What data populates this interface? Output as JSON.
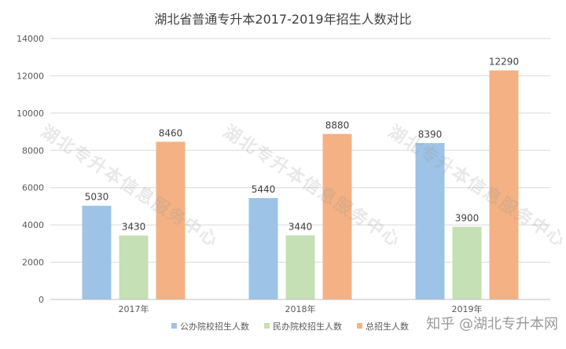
{
  "chart_data": {
    "type": "bar",
    "title": "湖北省普通专升本2017-2019年招生人数对比",
    "xlabel": "",
    "ylabel": "",
    "categories": [
      "2017年",
      "2018年",
      "2019年"
    ],
    "ylim": [
      0,
      14000
    ],
    "yticks": [
      "0",
      "2000",
      "4000",
      "6000",
      "8000",
      "10000",
      "12000",
      "14000"
    ],
    "grid": true,
    "legend_position": "bottom",
    "series": [
      {
        "name": "公办院校招生人数",
        "color": "#9DC3E6",
        "values": [
          5030,
          5440,
          8390
        ]
      },
      {
        "name": "民办院校招生人数",
        "color": "#C5E0B4",
        "values": [
          3430,
          3440,
          3900
        ]
      },
      {
        "name": "总招生人数",
        "color": "#F4B183",
        "values": [
          8460,
          8880,
          12290
        ]
      }
    ]
  },
  "watermark_text": "湖北专升本信息服务中心",
  "credit": "知乎 @湖北专升本网"
}
